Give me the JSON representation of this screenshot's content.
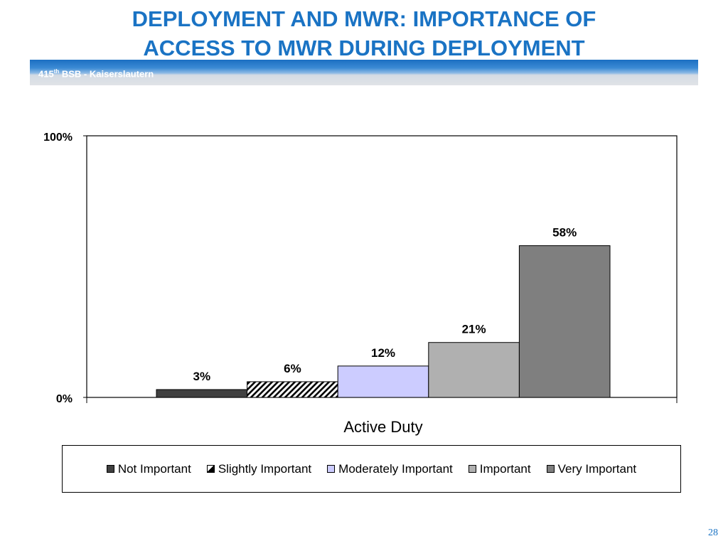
{
  "slide": {
    "title_line1": "DEPLOYMENT AND MWR: IMPORTANCE OF",
    "title_line2": "ACCESS TO MWR DURING DEPLOYMENT",
    "banner_prefix": "415",
    "banner_sup": "th",
    "banner_suffix": " BSB - Kaiserslautern",
    "page_number": "28"
  },
  "chart_data": {
    "type": "bar",
    "categories": [
      "Active Duty"
    ],
    "series": [
      {
        "name": "Not Important",
        "values": [
          3
        ],
        "label": "3%",
        "color": "#404040",
        "pattern": "solid"
      },
      {
        "name": "Slightly Important",
        "values": [
          6
        ],
        "label": "6%",
        "color": "#ffffff",
        "pattern": "hatch"
      },
      {
        "name": "Moderately Important",
        "values": [
          12
        ],
        "label": "12%",
        "color": "#ccccff",
        "pattern": "solid"
      },
      {
        "name": "Important",
        "values": [
          21
        ],
        "label": "21%",
        "color": "#b0b0b0",
        "pattern": "solid"
      },
      {
        "name": "Very Important",
        "values": [
          58
        ],
        "label": "58%",
        "color": "#7f7f7f",
        "pattern": "solid"
      }
    ],
    "ylim": [
      0,
      100
    ],
    "yticks": [
      "0%",
      "100%"
    ],
    "xlabel": "Active Duty",
    "ylabel": "",
    "grid": false,
    "legend_position": "bottom"
  }
}
